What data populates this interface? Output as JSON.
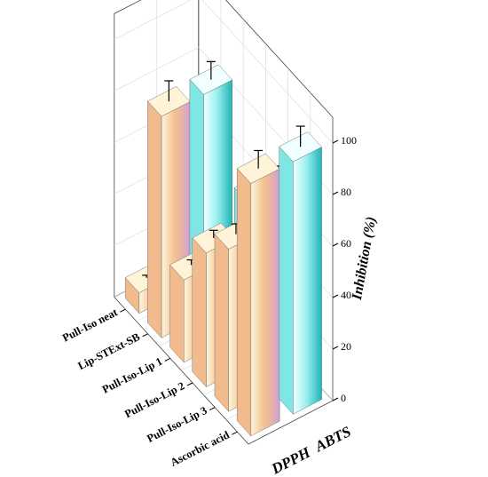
{
  "chart_data": {
    "type": "bar",
    "subtype": "3d-bar",
    "title": "",
    "zlabel": "Inhibition (%)",
    "zlim": [
      0,
      110
    ],
    "zticks": [
      0,
      20,
      40,
      60,
      80,
      100
    ],
    "grid": true,
    "categories": [
      "Ascorbic acid",
      "Pull-Iso-Lip 3",
      "Pull-Iso-Lip 2",
      "Pull-Iso-Lip 1",
      "Lip-STExt-SB",
      "Pull-Iso neat"
    ],
    "series": [
      {
        "name": "DPPH",
        "values": [
          98,
          63,
          52,
          32,
          86,
          8
        ],
        "errors": [
          7,
          4,
          3,
          2,
          8,
          1
        ]
      },
      {
        "name": "ABTS",
        "values": [
          98,
          76,
          63,
          35,
          86,
          15
        ],
        "errors": [
          8,
          5,
          4,
          2,
          7,
          2
        ]
      }
    ],
    "colors": {
      "DPPH": {
        "light": "#fff4d8",
        "mid": "#f2bb8e",
        "dark": "#c9a0e0"
      },
      "ABTS": {
        "light": "#f0ffff",
        "mid": "#7fe6e6",
        "dark": "#1faaaa"
      }
    }
  }
}
